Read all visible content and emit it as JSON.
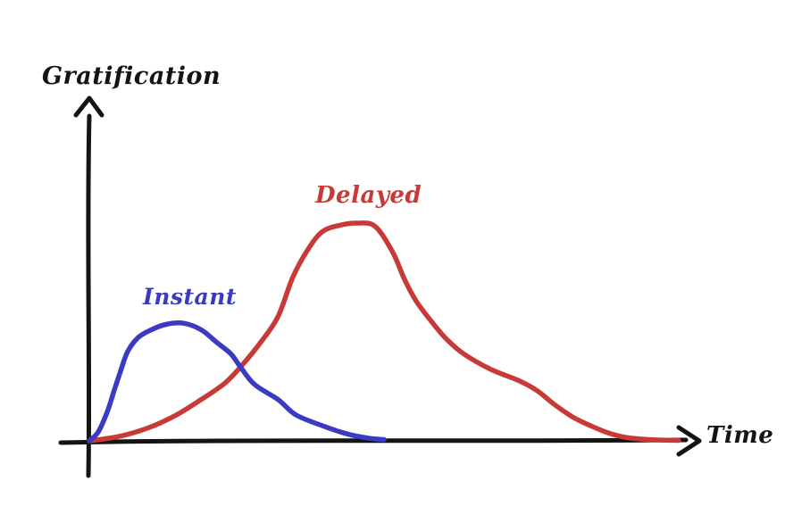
{
  "labels": {
    "y_axis": "Gratification",
    "x_axis": "Time",
    "series_instant": "Instant",
    "series_delayed": "Delayed"
  },
  "colors": {
    "instant": "#3b3ac2",
    "delayed": "#c73a38",
    "axis": "#141414",
    "text": "#141414",
    "background": "#ffffff"
  },
  "chart_data": {
    "type": "line",
    "style": "hand-drawn sketch, no ticks, no grid",
    "title": "",
    "xlabel": "Time",
    "ylabel": "Gratification",
    "x_range": [
      0,
      10
    ],
    "y_range": [
      0,
      1
    ],
    "grid": false,
    "legend": "inline labels above each curve",
    "series": [
      {
        "name": "Delayed",
        "color": "#c73a38",
        "peak": {
          "x": 4.55,
          "y": 1.0
        },
        "points": [
          [
            0,
            0
          ],
          [
            0.5,
            0.02
          ],
          [
            1.0,
            0.06
          ],
          [
            1.45,
            0.115
          ],
          [
            1.9,
            0.19
          ],
          [
            2.3,
            0.265
          ],
          [
            2.6,
            0.35
          ],
          [
            2.9,
            0.45
          ],
          [
            3.2,
            0.57
          ],
          [
            3.45,
            0.75
          ],
          [
            3.7,
            0.875
          ],
          [
            3.95,
            0.96
          ],
          [
            4.25,
            0.99
          ],
          [
            4.55,
            1.0
          ],
          [
            4.85,
            0.985
          ],
          [
            5.15,
            0.865
          ],
          [
            5.35,
            0.74
          ],
          [
            5.55,
            0.64
          ],
          [
            5.8,
            0.55
          ],
          [
            6.05,
            0.47
          ],
          [
            6.35,
            0.4
          ],
          [
            6.8,
            0.33
          ],
          [
            7.3,
            0.275
          ],
          [
            7.6,
            0.23
          ],
          [
            7.9,
            0.165
          ],
          [
            8.2,
            0.11
          ],
          [
            8.5,
            0.07
          ],
          [
            8.8,
            0.037
          ],
          [
            9.1,
            0.016
          ],
          [
            9.55,
            0.005
          ],
          [
            10.0,
            0.002
          ]
        ]
      },
      {
        "name": "Instant",
        "color": "#3b3ac2",
        "peak": {
          "x": 1.6,
          "y": 0.54
        },
        "points": [
          [
            0,
            0
          ],
          [
            0.15,
            0.04
          ],
          [
            0.3,
            0.13
          ],
          [
            0.42,
            0.23
          ],
          [
            0.53,
            0.32
          ],
          [
            0.65,
            0.41
          ],
          [
            0.83,
            0.475
          ],
          [
            1.05,
            0.51
          ],
          [
            1.3,
            0.535
          ],
          [
            1.6,
            0.54
          ],
          [
            1.9,
            0.51
          ],
          [
            2.15,
            0.455
          ],
          [
            2.4,
            0.4
          ],
          [
            2.55,
            0.345
          ],
          [
            2.8,
            0.26
          ],
          [
            3.2,
            0.19
          ],
          [
            3.5,
            0.12
          ],
          [
            3.95,
            0.07
          ],
          [
            4.4,
            0.03
          ],
          [
            4.75,
            0.012
          ],
          [
            5.0,
            0.006
          ]
        ]
      }
    ],
    "annotations": [
      {
        "text": "Delayed",
        "color": "#c73a38",
        "near": {
          "x": 4.4,
          "y": 1.15
        }
      },
      {
        "text": "Instant",
        "color": "#3b3ac2",
        "near": {
          "x": 1.55,
          "y": 0.68
        }
      }
    ]
  }
}
